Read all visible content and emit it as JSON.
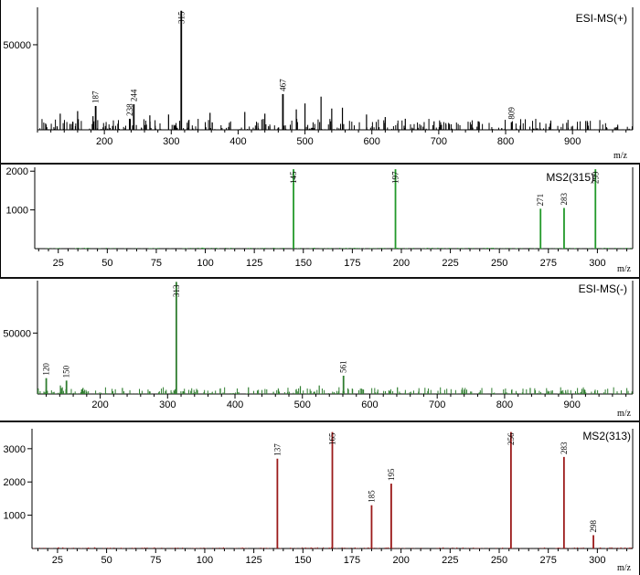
{
  "chart_data": [
    {
      "type": "bar",
      "subtype": "mass-spectrum",
      "title": "ESI-MS(+)",
      "xlabel": "m/z",
      "xlim": [
        100,
        990
      ],
      "ylim": [
        0,
        72000
      ],
      "xticks": [
        200,
        300,
        400,
        500,
        600,
        700,
        800,
        900
      ],
      "yticks": [
        50000
      ],
      "color": "#000000",
      "peaks": [
        {
          "mz": 187,
          "intensity": 14000,
          "label": "187"
        },
        {
          "mz": 238,
          "intensity": 6500,
          "label": "238"
        },
        {
          "mz": 244,
          "intensity": 15000,
          "label": "244"
        },
        {
          "mz": 315,
          "intensity": 70000,
          "label": "315"
        },
        {
          "mz": 467,
          "intensity": 21000,
          "label": "467"
        },
        {
          "mz": 809,
          "intensity": 4500,
          "label": "809"
        },
        {
          "mz": 134,
          "intensity": 9500
        },
        {
          "mz": 160,
          "intensity": 11000
        },
        {
          "mz": 183,
          "intensity": 8000
        },
        {
          "mz": 268,
          "intensity": 8500
        },
        {
          "mz": 296,
          "intensity": 9000
        },
        {
          "mz": 358,
          "intensity": 10000
        },
        {
          "mz": 410,
          "intensity": 10500
        },
        {
          "mz": 440,
          "intensity": 9500
        },
        {
          "mz": 487,
          "intensity": 12000
        },
        {
          "mz": 500,
          "intensity": 15500
        },
        {
          "mz": 524,
          "intensity": 19500
        },
        {
          "mz": 540,
          "intensity": 12500
        },
        {
          "mz": 556,
          "intensity": 13000
        },
        {
          "mz": 592,
          "intensity": 9000
        },
        {
          "mz": 620,
          "intensity": 7500
        },
        {
          "mz": 650,
          "intensity": 6500
        },
        {
          "mz": 693,
          "intensity": 5000
        }
      ]
    },
    {
      "type": "bar",
      "subtype": "mass-spectrum",
      "title": "MS2(315)",
      "xlabel": "m/z",
      "xlim": [
        13,
        318
      ],
      "ylim": [
        0,
        2100
      ],
      "xticks": [
        25,
        50,
        75,
        100,
        125,
        150,
        175,
        200,
        225,
        250,
        275,
        300
      ],
      "yticks": [
        1000,
        2000
      ],
      "color": "#22992a",
      "peaks": [
        {
          "mz": 145,
          "intensity": 2050,
          "label": "145"
        },
        {
          "mz": 197,
          "intensity": 2050,
          "label": "197"
        },
        {
          "mz": 271,
          "intensity": 1030,
          "label": "271"
        },
        {
          "mz": 283,
          "intensity": 1050,
          "label": "283"
        },
        {
          "mz": 299,
          "intensity": 2050,
          "label": "299"
        }
      ]
    },
    {
      "type": "bar",
      "subtype": "mass-spectrum",
      "title": "ESI-MS(-)",
      "xlabel": "m/z",
      "xlim": [
        107,
        990
      ],
      "ylim": [
        0,
        93000
      ],
      "xticks": [
        200,
        300,
        400,
        500,
        600,
        700,
        800,
        900
      ],
      "yticks": [
        50000
      ],
      "color": "#2f7d2f",
      "peaks": [
        {
          "mz": 120,
          "intensity": 13000,
          "label": "120"
        },
        {
          "mz": 150,
          "intensity": 11000,
          "label": "150"
        },
        {
          "mz": 313,
          "intensity": 92000,
          "label": "313"
        },
        {
          "mz": 561,
          "intensity": 15000,
          "label": "561"
        },
        {
          "mz": 141,
          "intensity": 7000
        },
        {
          "mz": 233,
          "intensity": 5000
        },
        {
          "mz": 420,
          "intensity": 5500
        },
        {
          "mz": 497,
          "intensity": 6500
        },
        {
          "mz": 525,
          "intensity": 7000
        },
        {
          "mz": 641,
          "intensity": 5500
        },
        {
          "mz": 838,
          "intensity": 5000
        }
      ]
    },
    {
      "type": "bar",
      "subtype": "mass-spectrum",
      "title": "MS2(313)",
      "xlabel": "m/z",
      "xlim": [
        12,
        318
      ],
      "ylim": [
        0,
        3600
      ],
      "xticks": [
        25,
        50,
        75,
        100,
        125,
        150,
        175,
        200,
        225,
        250,
        275,
        300
      ],
      "yticks": [
        1000,
        2000,
        3000
      ],
      "color": "#9b1a1a",
      "peaks": [
        {
          "mz": 137,
          "intensity": 2700,
          "label": "137"
        },
        {
          "mz": 165,
          "intensity": 3500,
          "label": "165"
        },
        {
          "mz": 185,
          "intensity": 1300,
          "label": "185"
        },
        {
          "mz": 195,
          "intensity": 1950,
          "label": "195"
        },
        {
          "mz": 256,
          "intensity": 3500,
          "label": "256"
        },
        {
          "mz": 283,
          "intensity": 2750,
          "label": "283"
        },
        {
          "mz": 298,
          "intensity": 400,
          "label": "298"
        }
      ]
    }
  ]
}
